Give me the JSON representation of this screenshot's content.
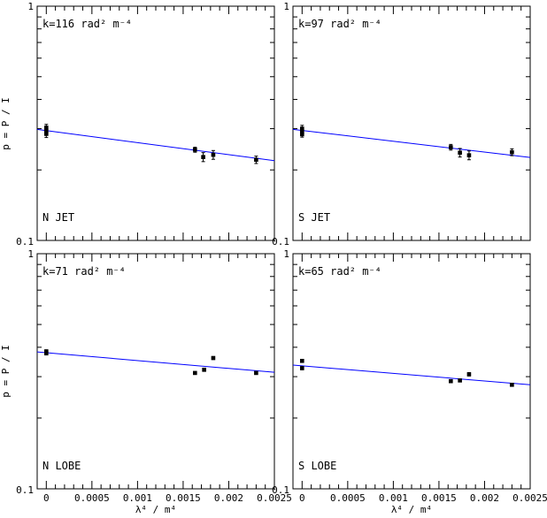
{
  "chart_data": {
    "type": "scatter",
    "xlabel": "λ⁴ / m⁴",
    "ylabel": "p = P / I",
    "y_scale": "log",
    "xlim": [
      -0.0001,
      0.0025
    ],
    "ylim": [
      0.1,
      1
    ],
    "x_ticks": [
      0,
      0.0005,
      0.001,
      0.0015,
      0.002,
      0.0025
    ],
    "x_tick_labels": [
      "0",
      "0.0005",
      "0.001",
      "0.0015",
      "0.002",
      "0.0025"
    ],
    "y_tick_labels": [
      "0.1",
      "1"
    ],
    "panels": [
      {
        "id": "n-jet",
        "annotation": "k=116 rad² m⁻⁴",
        "label": "N JET",
        "fit": {
          "x": [
            -0.0001,
            0.0025
          ],
          "y": [
            0.298,
            0.219
          ]
        },
        "points": [
          {
            "x": 0.0,
            "y": 0.303,
            "err": 0.01
          },
          {
            "x": 0.0,
            "y": 0.294,
            "err": 0.01
          },
          {
            "x": 0.0,
            "y": 0.285,
            "err": 0.01
          },
          {
            "x": 0.00163,
            "y": 0.244,
            "err": 0.006
          },
          {
            "x": 0.00172,
            "y": 0.227,
            "err": 0.01
          },
          {
            "x": 0.00183,
            "y": 0.232,
            "err": 0.01
          },
          {
            "x": 0.0023,
            "y": 0.221,
            "err": 0.008
          }
        ]
      },
      {
        "id": "s-jet",
        "annotation": "k=97 rad² m⁻⁴",
        "label": "S JET",
        "fit": {
          "x": [
            -0.0001,
            0.0025
          ],
          "y": [
            0.298,
            0.226
          ]
        },
        "points": [
          {
            "x": 0.0,
            "y": 0.3,
            "err": 0.01
          },
          {
            "x": 0.0,
            "y": 0.291,
            "err": 0.01
          },
          {
            "x": 0.0,
            "y": 0.284,
            "err": 0.008
          },
          {
            "x": 0.00163,
            "y": 0.25,
            "err": 0.007
          },
          {
            "x": 0.00173,
            "y": 0.237,
            "err": 0.01
          },
          {
            "x": 0.00183,
            "y": 0.231,
            "err": 0.01
          },
          {
            "x": 0.0023,
            "y": 0.238,
            "err": 0.008
          }
        ]
      },
      {
        "id": "n-lobe",
        "annotation": "k=71 rad² m⁻⁴",
        "label": "N LOBE",
        "fit": {
          "x": [
            -0.0001,
            0.0025
          ],
          "y": [
            0.382,
            0.313
          ]
        },
        "points": [
          {
            "x": 0.0,
            "y": 0.384,
            "err": 0.006
          },
          {
            "x": 0.0,
            "y": 0.377,
            "err": 0.006
          },
          {
            "x": 0.00163,
            "y": 0.311,
            "err": 0.004
          },
          {
            "x": 0.00173,
            "y": 0.321,
            "err": 0.005
          },
          {
            "x": 0.00183,
            "y": 0.36,
            "err": 0.005
          },
          {
            "x": 0.0023,
            "y": 0.311,
            "err": 0.004
          }
        ]
      },
      {
        "id": "s-lobe",
        "annotation": "k=65 rad² m⁻⁴",
        "label": "S LOBE",
        "fit": {
          "x": [
            -0.0001,
            0.0025
          ],
          "y": [
            0.336,
            0.277
          ]
        },
        "points": [
          {
            "x": 0.0,
            "y": 0.35,
            "err": 0.005
          },
          {
            "x": 0.0,
            "y": 0.326,
            "err": 0.005
          },
          {
            "x": 0.00163,
            "y": 0.287,
            "err": 0.004
          },
          {
            "x": 0.00173,
            "y": 0.289,
            "err": 0.004
          },
          {
            "x": 0.00183,
            "y": 0.307,
            "err": 0.005
          },
          {
            "x": 0.0023,
            "y": 0.277,
            "err": 0.004
          }
        ]
      }
    ],
    "colors": {
      "fit_line": "#0000ff",
      "points": "#000000"
    }
  }
}
